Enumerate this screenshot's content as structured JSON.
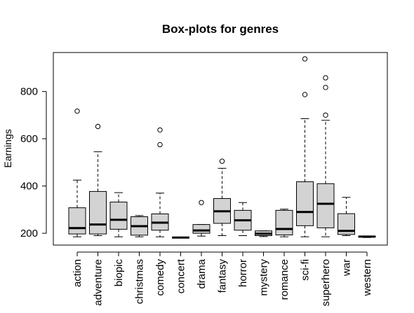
{
  "chart_data": {
    "type": "box",
    "title": "Box-plots for genres",
    "xlabel": "",
    "ylabel": "Earnings",
    "yticks": [
      200,
      400,
      600,
      800
    ],
    "ylim": [
      150,
      965
    ],
    "grid": false,
    "legend": "none",
    "colors": {
      "box_fill": "#d3d3d3",
      "stroke": "#000000",
      "background": "#ffffff"
    },
    "categories": [
      "action",
      "adventure",
      "biopic",
      "christmas",
      "comedy",
      "concert",
      "drama",
      "fantasy",
      "horror",
      "mystery",
      "romance",
      "sci-fi",
      "superhero",
      "war",
      "western"
    ],
    "boxes": [
      {
        "min": 185,
        "q1": 197,
        "median": 222,
        "q3": 308,
        "max": 425,
        "outliers": [
          717
        ]
      },
      {
        "min": 190,
        "q1": 197,
        "median": 237,
        "q3": 377,
        "max": 545,
        "outliers": [
          652
        ]
      },
      {
        "min": 185,
        "q1": 217,
        "median": 257,
        "q3": 332,
        "max": 372,
        "outliers": []
      },
      {
        "min": 185,
        "q1": 192,
        "median": 230,
        "q3": 270,
        "max": 275,
        "outliers": []
      },
      {
        "min": 185,
        "q1": 213,
        "median": 245,
        "q3": 282,
        "max": 370,
        "outliers": [
          575,
          637
        ]
      },
      {
        "min": 180,
        "q1": 180,
        "median": 182,
        "q3": 184,
        "max": 184,
        "outliers": []
      },
      {
        "min": 188,
        "q1": 200,
        "median": 212,
        "q3": 237,
        "max": 237,
        "outliers": [
          330
        ]
      },
      {
        "min": 190,
        "q1": 242,
        "median": 293,
        "q3": 347,
        "max": 475,
        "outliers": [
          505
        ]
      },
      {
        "min": 190,
        "q1": 213,
        "median": 255,
        "q3": 297,
        "max": 330,
        "outliers": []
      },
      {
        "min": 186,
        "q1": 190,
        "median": 198,
        "q3": 210,
        "max": 210,
        "outliers": []
      },
      {
        "min": 185,
        "q1": 193,
        "median": 218,
        "q3": 297,
        "max": 302,
        "outliers": []
      },
      {
        "min": 185,
        "q1": 232,
        "median": 290,
        "q3": 418,
        "max": 685,
        "outliers": [
          787,
          938
        ]
      },
      {
        "min": 185,
        "q1": 223,
        "median": 325,
        "q3": 410,
        "max": 678,
        "outliers": [
          700,
          817,
          858
        ]
      },
      {
        "min": 190,
        "q1": 195,
        "median": 210,
        "q3": 283,
        "max": 352,
        "outliers": []
      },
      {
        "min": 182,
        "q1": 184,
        "median": 186,
        "q3": 188,
        "max": 188,
        "outliers": []
      }
    ]
  }
}
